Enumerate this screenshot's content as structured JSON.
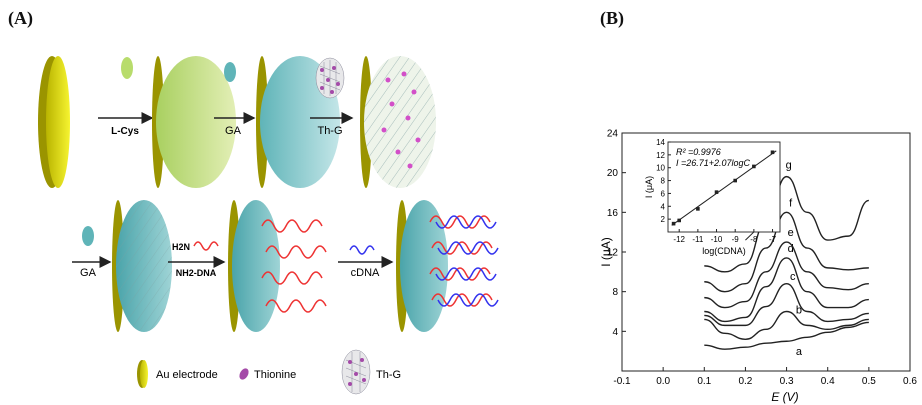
{
  "panels": {
    "a_label": "(A)",
    "b_label": "(B)"
  },
  "scheme": {
    "row1_steps": [
      "L-Cys",
      "GA",
      "Th-G"
    ],
    "row2_steps": [
      "GA",
      "NH2-DNA",
      "cDNA"
    ],
    "h2n_label": "H2N",
    "legend": {
      "au": "Au electrode",
      "thionine": "Thionine",
      "thg": "Th-G"
    },
    "colors": {
      "gold": "#f2f230",
      "green": "#c8e08a",
      "teal": "#7ec8c8",
      "red": "#ee3333",
      "blue": "#3333ee",
      "purple": "#a44aa8"
    }
  },
  "chart_data": {
    "type": "line",
    "xlabel": "E (V)",
    "ylabel": "I (μA)",
    "xlim": [
      -0.1,
      0.6
    ],
    "ylim": [
      0,
      24
    ],
    "xticks": [
      "-0.1",
      "0.0",
      "0.1",
      "0.2",
      "0.3",
      "0.4",
      "0.5",
      "0.6"
    ],
    "yticks": [
      "4",
      "8",
      "12",
      "16",
      "20",
      "24"
    ],
    "series": [
      {
        "name": "a",
        "x": [
          0.1,
          0.15,
          0.2,
          0.25,
          0.3,
          0.35,
          0.4,
          0.45,
          0.5
        ],
        "y": [
          2.6,
          2.2,
          2.4,
          2.8,
          3.0,
          3.4,
          3.9,
          4.4,
          4.9
        ]
      },
      {
        "name": "b",
        "x": [
          0.1,
          0.15,
          0.2,
          0.25,
          0.3,
          0.35,
          0.4,
          0.45,
          0.5
        ],
        "y": [
          5.2,
          3.8,
          3.2,
          4.2,
          6.0,
          4.6,
          4.2,
          4.6,
          5.2
        ]
      },
      {
        "name": "c",
        "x": [
          0.1,
          0.15,
          0.2,
          0.25,
          0.3,
          0.35,
          0.4,
          0.45,
          0.5
        ],
        "y": [
          5.6,
          4.6,
          4.6,
          6.5,
          8.8,
          6.0,
          5.0,
          5.2,
          5.8
        ]
      },
      {
        "name": "d",
        "x": [
          0.1,
          0.15,
          0.2,
          0.25,
          0.3,
          0.35,
          0.4,
          0.45,
          0.5
        ],
        "y": [
          6.0,
          5.0,
          5.4,
          8.5,
          11.4,
          8.0,
          6.4,
          6.4,
          7.2
        ]
      },
      {
        "name": "e",
        "x": [
          0.1,
          0.15,
          0.2,
          0.25,
          0.3,
          0.35,
          0.4,
          0.45,
          0.5
        ],
        "y": [
          7.4,
          6.4,
          7.0,
          10.0,
          13.0,
          10.0,
          8.4,
          8.2,
          8.8
        ]
      },
      {
        "name": "f",
        "x": [
          0.1,
          0.15,
          0.2,
          0.25,
          0.3,
          0.35,
          0.4,
          0.45,
          0.5
        ],
        "y": [
          9.0,
          8.0,
          8.8,
          12.4,
          16.0,
          12.4,
          10.4,
          10.2,
          10.4
        ]
      },
      {
        "name": "g",
        "x": [
          0.1,
          0.15,
          0.2,
          0.25,
          0.3,
          0.35,
          0.4,
          0.45,
          0.5
        ],
        "y": [
          10.6,
          10.0,
          10.8,
          15.0,
          19.6,
          16.0,
          13.2,
          13.6,
          17.2
        ]
      }
    ],
    "inset": {
      "xlabel": "log(CDNA)",
      "ylabel": "I (μA)",
      "xlim": [
        -12.6,
        -6.6
      ],
      "ylim": [
        0,
        14
      ],
      "xticks": [
        "-12",
        "-11",
        "-10",
        "-9",
        "-8",
        "-7"
      ],
      "yticks": [
        "2",
        "4",
        "6",
        "8",
        "10",
        "12",
        "14"
      ],
      "r2_text": "R² =0.9976",
      "eq_text": "I =26.71+2.07logC",
      "points_x": [
        -12.3,
        -12,
        -11,
        -10,
        -9,
        -8,
        -7
      ],
      "points_y": [
        1.3,
        1.8,
        3.6,
        6.2,
        8.0,
        10.2,
        12.4
      ],
      "fit_intercept": 26.71,
      "fit_slope": 2.07
    }
  }
}
